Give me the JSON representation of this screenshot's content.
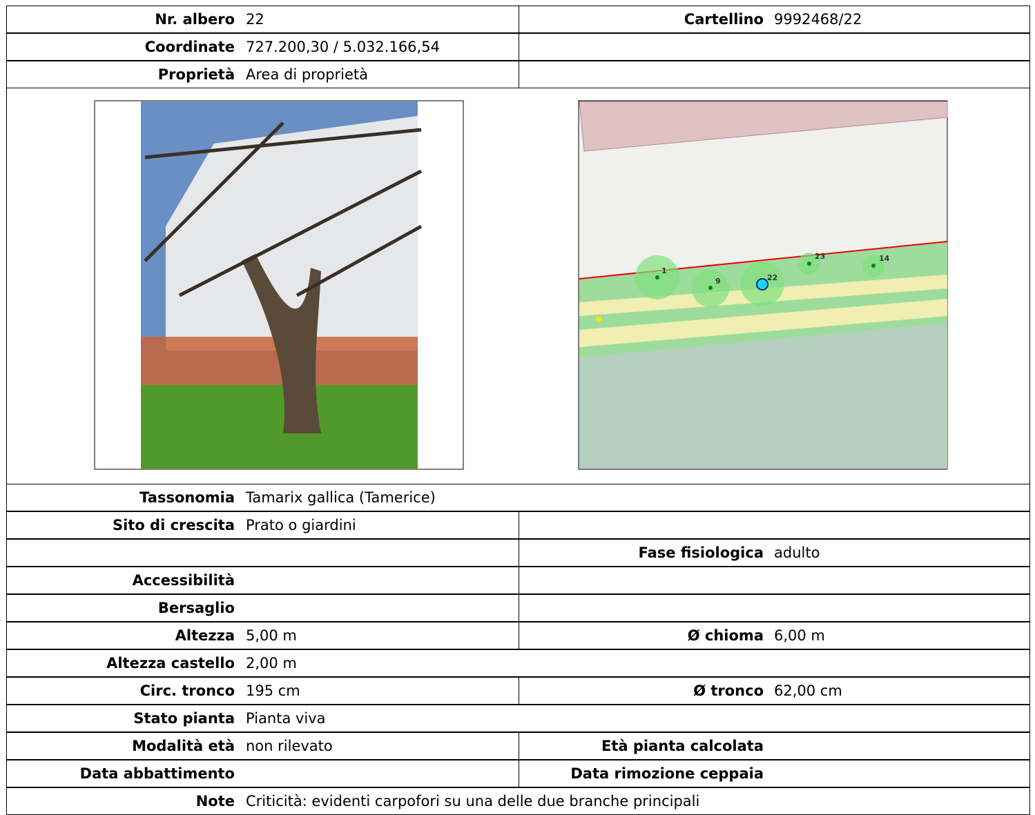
{
  "rows_top": [
    {
      "cells": [
        {
          "label": "Nr. albero",
          "value": "22"
        },
        {
          "label": "Cartellino",
          "value": "9992468/22"
        }
      ]
    },
    {
      "cells": [
        {
          "label": "Coordinate",
          "value": "727.200,30 / 5.032.166,54"
        },
        {}
      ]
    },
    {
      "cells": [
        {
          "label": "Proprietà",
          "value": "Area di proprietà"
        },
        {}
      ]
    }
  ],
  "map": {
    "labels": [
      "1",
      "9",
      "22",
      "23",
      "14"
    ]
  },
  "rows_bottom": [
    {
      "cells": [
        {
          "label": "Tassonomia",
          "value": "Tamarix gallica (Tamerice)"
        }
      ]
    },
    {
      "cells": [
        {
          "label": "Sito di crescita",
          "value": "Prato o giardini"
        },
        {}
      ]
    },
    {
      "cells": [
        {},
        {
          "label": "Fase fisiologica",
          "value": "adulto"
        }
      ]
    },
    {
      "cells": [
        {
          "label": "Accessibilità"
        },
        {}
      ]
    },
    {
      "cells": [
        {
          "label": "Bersaglio"
        },
        {}
      ]
    },
    {
      "cells": [
        {
          "label": "Altezza",
          "value": "5,00 m"
        },
        {
          "label": "Ø chioma",
          "value": "6,00 m"
        }
      ]
    },
    {
      "cells": [
        {
          "label": "Altezza castello",
          "value": "2,00 m"
        }
      ]
    },
    {
      "cells": [
        {
          "label": "Circ. tronco",
          "value": "195 cm"
        },
        {
          "label": "Ø tronco",
          "value": "62,00 cm"
        }
      ]
    },
    {
      "cells": [
        {
          "label": "Stato pianta",
          "value": "Pianta viva"
        }
      ]
    },
    {
      "cells": [
        {
          "label": "Modalità età",
          "value": "non rilevato"
        },
        {
          "label": "Età pianta calcolata"
        }
      ]
    },
    {
      "cells": [
        {
          "label": "Data abbattimento"
        },
        {
          "label": "Data rimozione ceppaia"
        }
      ]
    },
    {
      "cells": [
        {
          "label": "Note",
          "value": "Criticità: evidenti carpofori su una delle due  branche principali"
        }
      ]
    }
  ]
}
